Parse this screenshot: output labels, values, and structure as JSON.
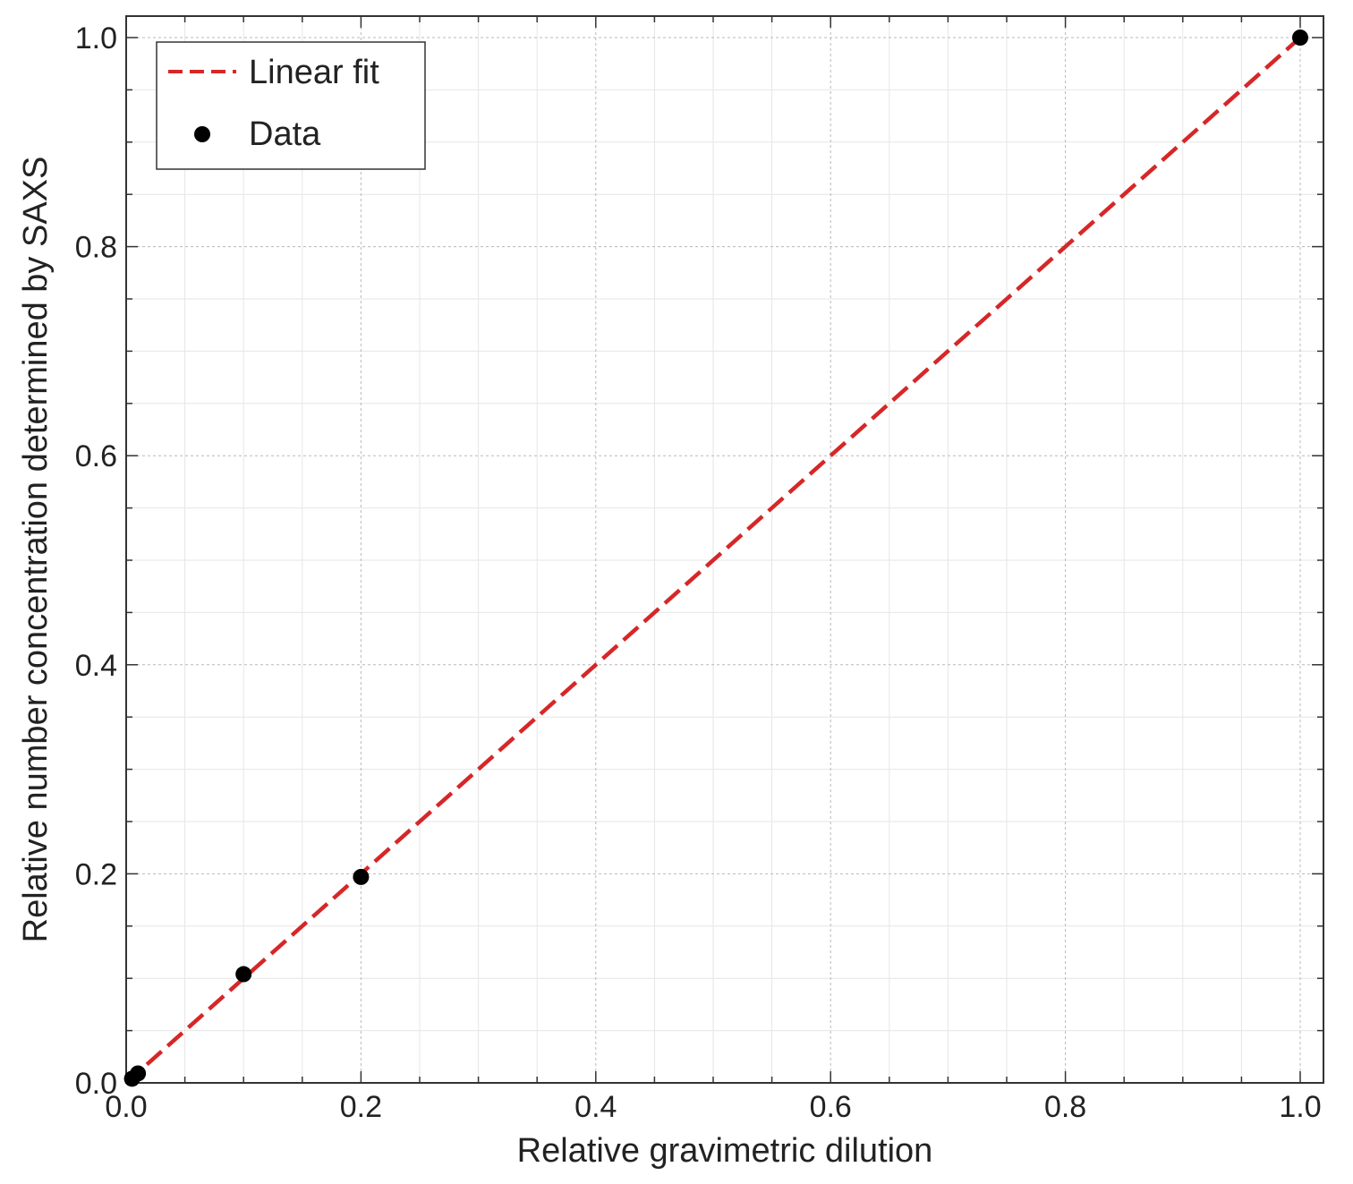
{
  "chart_data": {
    "type": "scatter",
    "xlabel": "Relative gravimetric dilution",
    "ylabel": "Relative number concentration determined by SAXS",
    "xlim": [
      0.0,
      1.02
    ],
    "ylim": [
      0.0,
      1.02
    ],
    "x_ticks": [
      "0.0",
      "0.2",
      "0.4",
      "0.6",
      "0.8",
      "1.0"
    ],
    "y_ticks": [
      "0.0",
      "0.2",
      "0.4",
      "0.6",
      "0.8",
      "1.0"
    ],
    "x_tick_values": [
      0,
      0.2,
      0.4,
      0.6,
      0.8,
      1.0
    ],
    "y_tick_values": [
      0,
      0.2,
      0.4,
      0.6,
      0.8,
      1.0
    ],
    "grid": true,
    "legend_position": "top-left",
    "series": [
      {
        "name": "Linear fit",
        "kind": "line",
        "style": "dashed",
        "color": "#d62728",
        "x": [
          0.0,
          1.0
        ],
        "y": [
          0.0,
          1.0
        ]
      },
      {
        "name": "Data",
        "kind": "scatter",
        "color": "#000000",
        "x": [
          0.005,
          0.01,
          0.1,
          0.2,
          1.0
        ],
        "y": [
          0.004,
          0.009,
          0.104,
          0.197,
          1.0
        ]
      }
    ]
  }
}
